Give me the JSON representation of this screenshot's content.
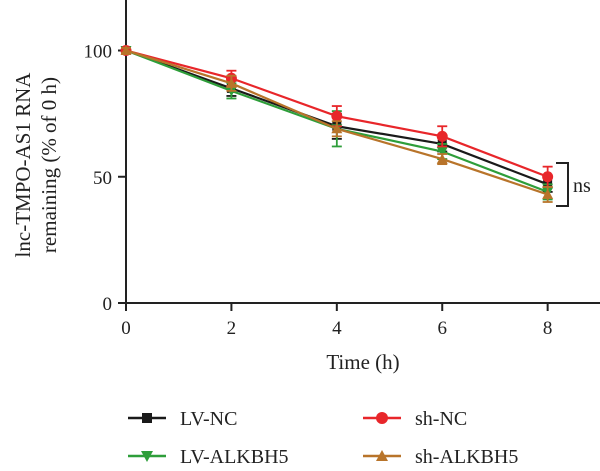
{
  "chart_data": {
    "type": "line",
    "title": "",
    "xlabel": "Time (h)",
    "ylabel_line1": "lnc-TMPO-AS1 RNA",
    "ylabel_line2": "remaining (% of 0 h)",
    "x": [
      0,
      2,
      4,
      6,
      8
    ],
    "xlim": [
      0,
      8.5
    ],
    "ylim": [
      0,
      120
    ],
    "xticks": [
      0,
      2,
      4,
      6,
      8
    ],
    "yticks": [
      0,
      50,
      100
    ],
    "grid": false,
    "legend_position": "bottom",
    "annotation": "ns",
    "series": [
      {
        "name": "LV-NC",
        "color": "#1a1a1a",
        "marker": "square",
        "values": [
          100,
          85,
          70,
          63,
          47
        ],
        "errors": [
          1,
          3,
          5,
          3,
          3
        ]
      },
      {
        "name": "LV-ALKBH5",
        "color": "#2e9e3a",
        "marker": "triangle-down",
        "values": [
          100,
          84,
          69,
          60,
          44
        ],
        "errors": [
          1,
          3,
          7,
          3,
          3
        ]
      },
      {
        "name": "sh-NC",
        "color": "#e8262a",
        "marker": "circle",
        "values": [
          100,
          89,
          74,
          66,
          50
        ],
        "errors": [
          1,
          3,
          4,
          4,
          4
        ]
      },
      {
        "name": "sh-ALKBH5",
        "color": "#b8742a",
        "marker": "triangle-up",
        "values": [
          100,
          87,
          69,
          57,
          43
        ],
        "errors": [
          1,
          3,
          3,
          2,
          3
        ]
      }
    ]
  }
}
